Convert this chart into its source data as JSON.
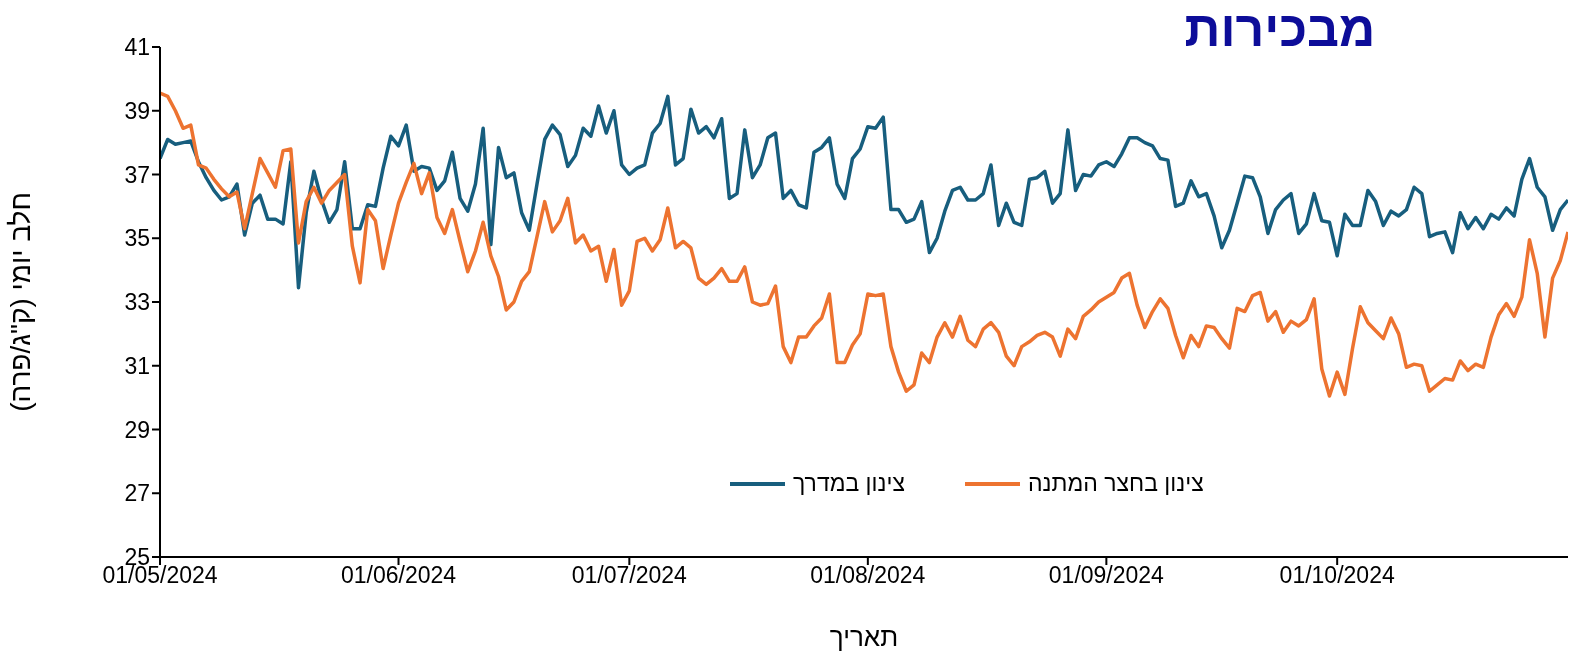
{
  "chart_data": {
    "type": "line",
    "title": "מבכירות",
    "xlabel": "תאריך",
    "ylabel": "חלב יומי (ק\"ג/פרה)",
    "x": [
      "2024-05-01",
      "2024-05-02",
      "2024-05-03",
      "2024-05-04",
      "2024-05-05",
      "2024-05-06",
      "2024-05-07",
      "2024-05-08",
      "2024-05-09",
      "2024-05-10",
      "2024-05-11",
      "2024-05-12",
      "2024-05-13",
      "2024-05-14",
      "2024-05-15",
      "2024-05-16",
      "2024-05-17",
      "2024-05-18",
      "2024-05-19",
      "2024-05-20",
      "2024-05-21",
      "2024-05-22",
      "2024-05-23",
      "2024-05-24",
      "2024-05-25",
      "2024-05-26",
      "2024-05-27",
      "2024-05-28",
      "2024-05-29",
      "2024-05-30",
      "2024-05-31",
      "2024-06-01",
      "2024-06-02",
      "2024-06-03",
      "2024-06-04",
      "2024-06-05",
      "2024-06-06",
      "2024-06-07",
      "2024-06-08",
      "2024-06-09",
      "2024-06-10",
      "2024-06-11",
      "2024-06-12",
      "2024-06-13",
      "2024-06-14",
      "2024-06-15",
      "2024-06-16",
      "2024-06-17",
      "2024-06-18",
      "2024-06-19",
      "2024-06-20",
      "2024-06-21",
      "2024-06-22",
      "2024-06-23",
      "2024-06-24",
      "2024-06-25",
      "2024-06-26",
      "2024-06-27",
      "2024-06-28",
      "2024-06-29",
      "2024-06-30",
      "2024-07-01",
      "2024-07-02",
      "2024-07-03",
      "2024-07-04",
      "2024-07-05",
      "2024-07-06",
      "2024-07-07",
      "2024-07-08",
      "2024-07-09",
      "2024-07-10",
      "2024-07-11",
      "2024-07-12",
      "2024-07-13",
      "2024-07-14",
      "2024-07-15",
      "2024-07-16",
      "2024-07-17",
      "2024-07-18",
      "2024-07-19",
      "2024-07-20",
      "2024-07-21",
      "2024-07-22",
      "2024-07-23",
      "2024-07-24",
      "2024-07-25",
      "2024-07-26",
      "2024-07-27",
      "2024-07-28",
      "2024-07-29",
      "2024-07-30",
      "2024-07-31",
      "2024-08-01",
      "2024-08-02",
      "2024-08-03",
      "2024-08-04",
      "2024-08-05",
      "2024-08-06",
      "2024-08-07",
      "2024-08-08",
      "2024-08-09",
      "2024-08-10",
      "2024-08-11",
      "2024-08-12",
      "2024-08-13",
      "2024-08-14",
      "2024-08-15",
      "2024-08-16",
      "2024-08-17",
      "2024-08-18",
      "2024-08-19",
      "2024-08-20",
      "2024-08-21",
      "2024-08-22",
      "2024-08-23",
      "2024-08-24",
      "2024-08-25",
      "2024-08-26",
      "2024-08-27",
      "2024-08-28",
      "2024-08-29",
      "2024-08-30",
      "2024-08-31",
      "2024-09-01",
      "2024-09-02",
      "2024-09-03",
      "2024-09-04",
      "2024-09-05",
      "2024-09-06",
      "2024-09-07",
      "2024-09-08",
      "2024-09-09",
      "2024-09-10",
      "2024-09-11",
      "2024-09-12",
      "2024-09-13",
      "2024-09-14",
      "2024-09-15",
      "2024-09-16",
      "2024-09-17",
      "2024-09-18",
      "2024-09-19",
      "2024-09-20",
      "2024-09-21",
      "2024-09-22",
      "2024-09-23",
      "2024-09-24",
      "2024-09-25",
      "2024-09-26",
      "2024-09-27",
      "2024-09-28",
      "2024-09-29",
      "2024-09-30",
      "2024-10-01",
      "2024-10-02",
      "2024-10-03",
      "2024-10-04",
      "2024-10-05",
      "2024-10-06",
      "2024-10-07",
      "2024-10-08",
      "2024-10-09",
      "2024-10-10",
      "2024-10-11",
      "2024-10-12",
      "2024-10-13",
      "2024-10-14",
      "2024-10-15",
      "2024-10-16",
      "2024-10-17",
      "2024-10-18",
      "2024-10-19",
      "2024-10-20",
      "2024-10-21",
      "2024-10-22",
      "2024-10-23",
      "2024-10-24",
      "2024-10-25",
      "2024-10-26",
      "2024-10-27",
      "2024-10-28",
      "2024-10-29",
      "2024-10-30",
      "2024-10-31"
    ],
    "series": [
      {
        "name": "צינון במדרך",
        "color": "#175e7e",
        "values": [
          37.5,
          38.1,
          37.95,
          38.0,
          38.05,
          37.4,
          36.9,
          36.5,
          36.2,
          36.3,
          36.7,
          35.1,
          36.1,
          36.35,
          35.6,
          35.6,
          35.45,
          37.4,
          33.45,
          35.8,
          37.1,
          36.2,
          35.5,
          35.9,
          37.4,
          35.3,
          35.3,
          36.05,
          36.0,
          37.2,
          38.2,
          37.9,
          38.55,
          37.1,
          37.25,
          37.2,
          36.5,
          36.8,
          37.7,
          36.25,
          35.85,
          36.7,
          38.45,
          34.8,
          37.85,
          36.9,
          37.05,
          35.8,
          35.25,
          36.7,
          38.1,
          38.55,
          38.25,
          37.25,
          37.6,
          38.45,
          38.2,
          39.15,
          38.3,
          39.0,
          37.3,
          37.0,
          37.2,
          37.3,
          38.3,
          38.6,
          39.45,
          37.3,
          37.5,
          39.05,
          38.3,
          38.5,
          38.15,
          38.75,
          36.25,
          36.4,
          38.4,
          36.9,
          37.3,
          38.15,
          38.3,
          36.25,
          36.5,
          36.05,
          35.95,
          37.7,
          37.85,
          38.15,
          36.7,
          36.25,
          37.5,
          37.8,
          38.5,
          38.45,
          38.8,
          35.9,
          35.9,
          35.5,
          35.6,
          36.15,
          34.55,
          35.0,
          35.85,
          36.5,
          36.6,
          36.2,
          36.2,
          36.4,
          37.3,
          35.4,
          36.1,
          35.5,
          35.4,
          36.85,
          36.9,
          37.1,
          36.1,
          36.4,
          38.4,
          36.5,
          37.0,
          36.95,
          37.3,
          37.4,
          37.25,
          37.65,
          38.15,
          38.15,
          38.0,
          37.9,
          37.5,
          37.45,
          36.0,
          36.1,
          36.8,
          36.3,
          36.4,
          35.7,
          34.7,
          35.25,
          36.1,
          36.95,
          36.9,
          36.3,
          35.15,
          35.9,
          36.2,
          36.4,
          35.15,
          35.45,
          36.4,
          35.55,
          35.5,
          34.45,
          35.75,
          35.4,
          35.4,
          36.5,
          36.15,
          35.4,
          35.85,
          35.7,
          35.9,
          36.6,
          36.4,
          35.05,
          35.15,
          35.2,
          34.55,
          35.8,
          35.3,
          35.65,
          35.3,
          35.75,
          35.6,
          35.95,
          35.7,
          36.85,
          37.5,
          36.6,
          36.3,
          35.25,
          35.9,
          36.2
        ]
      },
      {
        "name": "צינון בחצר המתנה",
        "color": "#ed7330",
        "values": [
          39.55,
          39.45,
          39.0,
          38.45,
          38.55,
          37.3,
          37.2,
          36.85,
          36.55,
          36.3,
          36.45,
          35.3,
          36.4,
          37.5,
          37.05,
          36.6,
          37.75,
          37.8,
          34.85,
          36.15,
          36.6,
          36.1,
          36.5,
          36.75,
          37.0,
          34.75,
          33.6,
          35.9,
          35.55,
          34.05,
          35.1,
          36.1,
          36.75,
          37.35,
          36.4,
          37.05,
          35.65,
          35.15,
          35.9,
          34.9,
          33.95,
          34.6,
          35.5,
          34.45,
          33.8,
          32.75,
          33.0,
          33.65,
          33.95,
          35.05,
          36.15,
          35.2,
          35.55,
          36.25,
          34.85,
          35.1,
          34.6,
          34.75,
          33.65,
          34.65,
          32.9,
          33.35,
          34.9,
          35.0,
          34.6,
          34.95,
          35.95,
          34.7,
          34.9,
          34.7,
          33.75,
          33.55,
          33.75,
          34.05,
          33.65,
          33.65,
          34.1,
          33.0,
          32.9,
          32.95,
          33.5,
          31.6,
          31.1,
          31.9,
          31.9,
          32.25,
          32.5,
          33.25,
          31.1,
          31.1,
          31.65,
          32.0,
          33.25,
          33.2,
          33.25,
          31.6,
          30.8,
          30.2,
          30.4,
          31.4,
          31.1,
          31.9,
          32.35,
          31.9,
          32.55,
          31.8,
          31.6,
          32.15,
          32.35,
          32.05,
          31.3,
          31.0,
          31.6,
          31.75,
          31.95,
          32.05,
          31.9,
          31.3,
          32.15,
          31.85,
          32.55,
          32.75,
          33.0,
          33.15,
          33.3,
          33.75,
          33.9,
          32.9,
          32.2,
          32.7,
          33.1,
          32.8,
          31.95,
          31.25,
          31.95,
          31.6,
          32.25,
          32.2,
          31.85,
          31.55,
          32.8,
          32.7,
          33.2,
          33.3,
          32.4,
          32.7,
          32.05,
          32.4,
          32.25,
          32.45,
          33.1,
          30.9,
          30.05,
          30.8,
          30.1,
          31.55,
          32.85,
          32.35,
          32.1,
          31.85,
          32.5,
          32.0,
          30.95,
          31.05,
          31.0,
          30.2,
          30.4,
          30.6,
          30.55,
          31.15,
          30.85,
          31.05,
          30.95,
          31.9,
          32.6,
          32.95,
          32.55,
          33.15,
          34.95,
          33.9,
          31.9,
          33.75,
          34.3,
          35.2
        ]
      }
    ],
    "xlim": [
      "2024-05-01",
      "2024-10-31"
    ],
    "xticks": [
      {
        "value": "2024-05-01",
        "label": "01/05/2024"
      },
      {
        "value": "2024-06-01",
        "label": "01/06/2024"
      },
      {
        "value": "2024-07-01",
        "label": "01/07/2024"
      },
      {
        "value": "2024-08-01",
        "label": "01/08/2024"
      },
      {
        "value": "2024-09-01",
        "label": "01/09/2024"
      },
      {
        "value": "2024-10-01",
        "label": "01/10/2024"
      }
    ],
    "ylim": [
      25,
      41
    ],
    "yticks": [
      25,
      27,
      29,
      31,
      33,
      35,
      37,
      39,
      41
    ],
    "legend": "bottom"
  }
}
